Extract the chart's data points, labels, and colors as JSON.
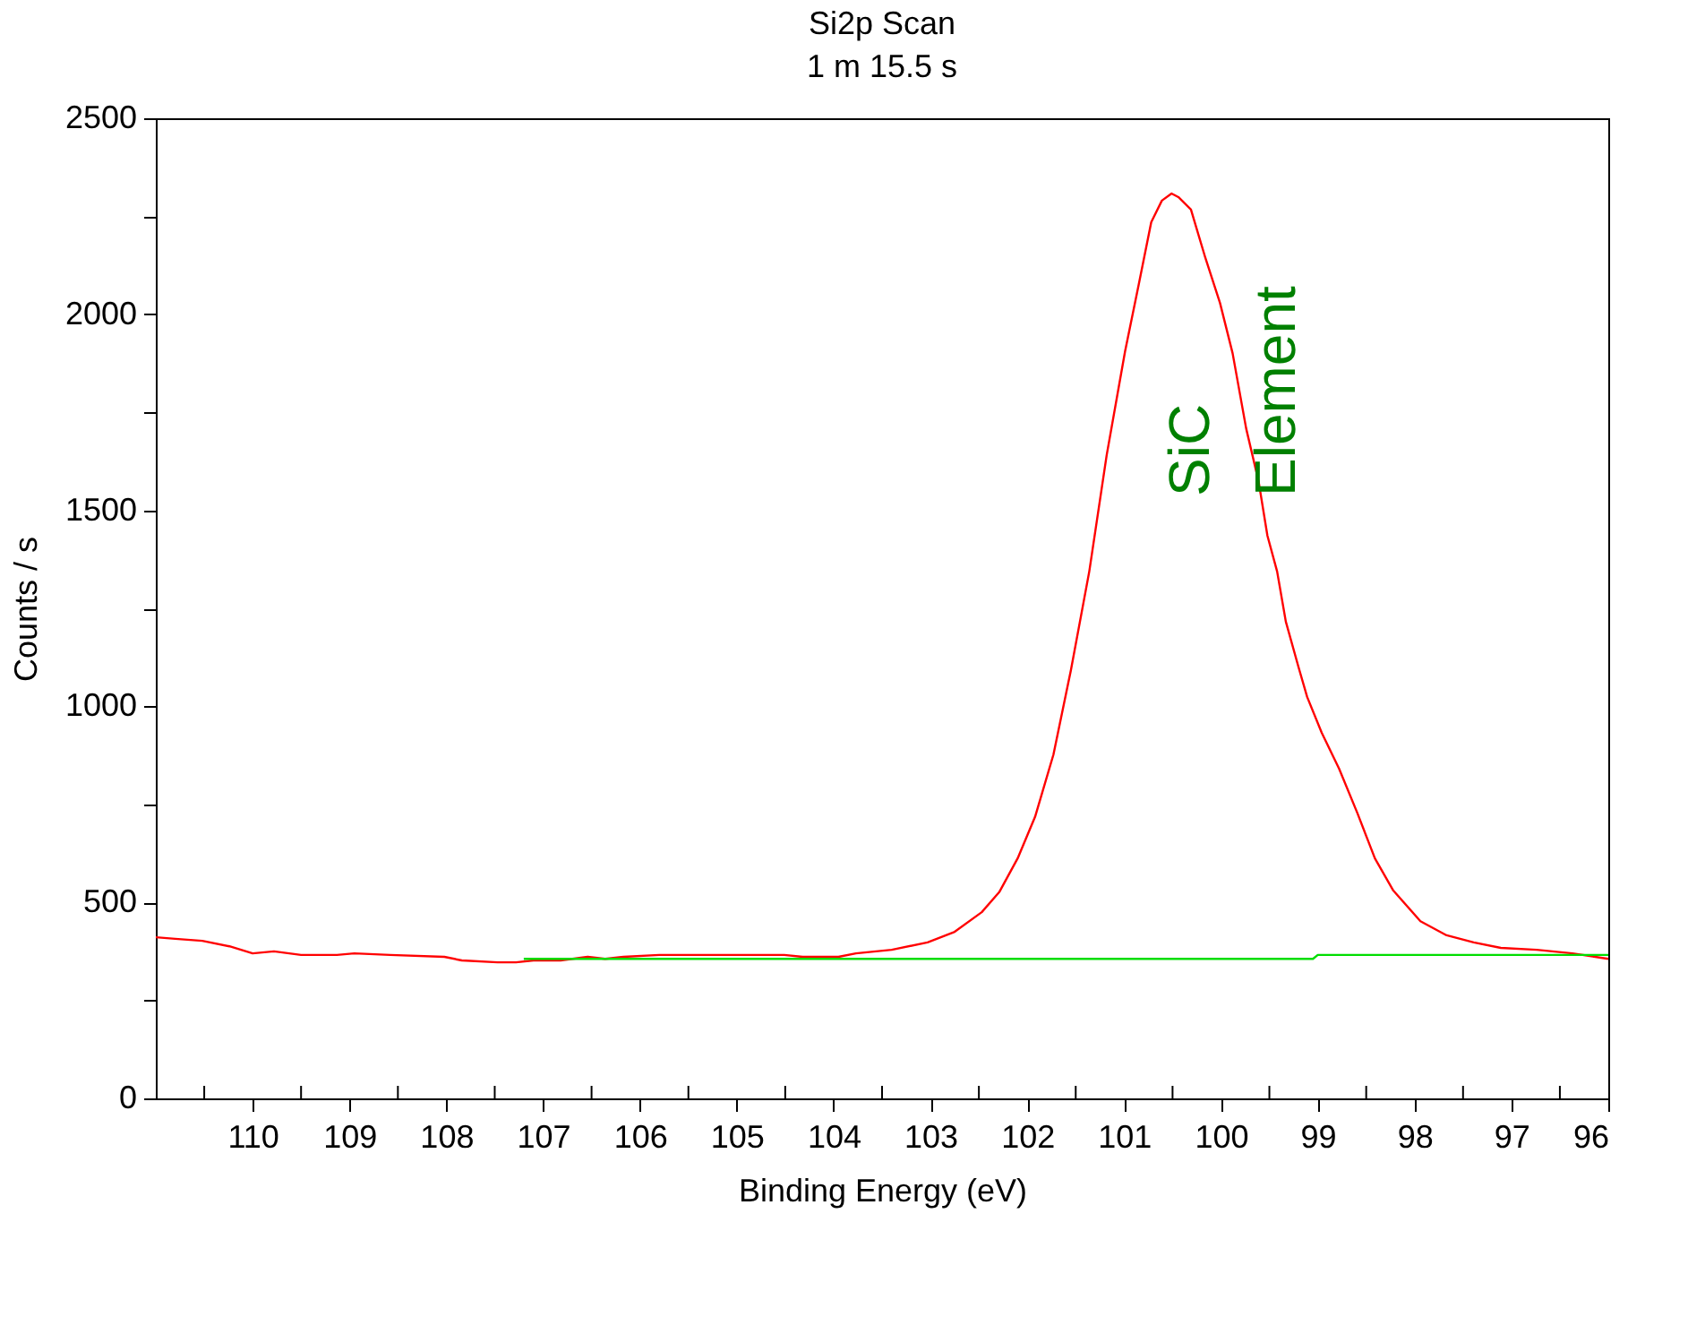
{
  "chart_data": {
    "type": "line",
    "title": "Si2p Scan",
    "subtitle": "1 m 15.5 s",
    "xlabel": "Binding Energy (eV)",
    "ylabel": "Counts / s",
    "xlim": [
      111,
      96
    ],
    "xticks": [
      {
        "value": 110.5,
        "label": null
      },
      110,
      {
        "value": 109.5,
        "label": null
      },
      109,
      {
        "value": 108.5,
        "label": null
      },
      108,
      {
        "value": 107.5,
        "label": null
      },
      107,
      {
        "value": 106.5,
        "label": null
      },
      106,
      {
        "value": 105.5,
        "label": null
      },
      105,
      {
        "value": 104.5,
        "label": null
      },
      104,
      {
        "value": 103.5,
        "label": null
      },
      103,
      {
        "value": 102.5,
        "label": null
      },
      102,
      {
        "value": 101.5,
        "label": null
      },
      101,
      {
        "value": 100.5,
        "label": null
      },
      100,
      {
        "value": 99.5,
        "label": null
      },
      99,
      {
        "value": 98.5,
        "label": null
      },
      98,
      {
        "value": 97.5,
        "label": null
      },
      97,
      {
        "value": 96.5,
        "label": null
      },
      96
    ],
    "ylim": [
      0,
      2500
    ],
    "yticks": [
      0,
      {
        "value": 250,
        "label": null
      },
      500,
      {
        "value": 750,
        "label": null
      },
      1000,
      {
        "value": 1250,
        "label": null
      },
      1500,
      {
        "value": 1750,
        "label": null
      },
      2000,
      {
        "value": 2250,
        "label": null
      },
      2500
    ],
    "grid": false,
    "marker": "none",
    "line_style": "solid",
    "series": [
      {
        "color": "#ff0000",
        "x": [
          111,
          110.8,
          110.52,
          110.24,
          110,
          109.78,
          109.5,
          109.13,
          108.95,
          108.58,
          108.02,
          107.84,
          107.47,
          107.28,
          107.1,
          106.82,
          106.54,
          106.36,
          106.17,
          105.8,
          105.25,
          104.51,
          104.32,
          103.95,
          103.77,
          103.4,
          103.03,
          102.75,
          102.47,
          102.29,
          102.1,
          101.92,
          101.73,
          101.55,
          101.36,
          101.18,
          100.99,
          100.85,
          100.72,
          100.61,
          100.51,
          100.44,
          100.31,
          100.16,
          100.01,
          99.88,
          99.74,
          99.61,
          99.52,
          99.42,
          99.33,
          99.2,
          99.11,
          98.96,
          98.78,
          98.59,
          98.41,
          98.22,
          97.94,
          97.67,
          97.39,
          97.11,
          96.74,
          96.37,
          96
        ],
        "values": [
          411,
          407,
          402,
          388,
          370,
          375,
          366,
          366,
          370,
          366,
          361,
          352,
          347,
          347,
          352,
          352,
          361,
          356,
          361,
          366,
          366,
          366,
          361,
          361,
          370,
          379,
          398,
          425,
          475,
          526,
          612,
          718,
          877,
          1092,
          1344,
          1641,
          1906,
          2075,
          2235,
          2290,
          2308,
          2299,
          2267,
          2143,
          2029,
          1901,
          1709,
          1572,
          1435,
          1344,
          1216,
          1101,
          1024,
          933,
          841,
          727,
          612,
          530,
          452,
          416,
          398,
          384,
          379,
          370,
          356
        ]
      },
      {
        "color": "#00dd00",
        "x": [
          107.2,
          99.05,
          99.0,
          96
        ],
        "values": [
          356,
          356,
          366,
          366
        ]
      }
    ],
    "annotations": [
      "SiC",
      "Element"
    ]
  }
}
